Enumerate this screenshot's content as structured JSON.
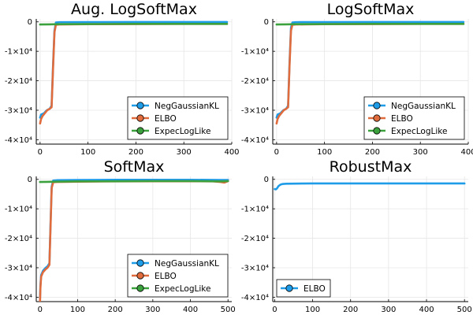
{
  "figure": {
    "background": "#ffffff"
  },
  "colors": {
    "NegGaussianKL": "#1f9ce8",
    "ELBO": "#e06b3c",
    "ExpecLogLike": "#3aa13d"
  },
  "chart_data": [
    {
      "type": "line",
      "title": "Aug. LogSoftMax",
      "xlim": [
        -8,
        400
      ],
      "ylim": [
        -41500,
        1000
      ],
      "xticks": [
        0,
        100,
        200,
        300,
        400
      ],
      "xtick_labels": [
        "0",
        "100",
        "200",
        "300",
        "400"
      ],
      "yticks": [
        0,
        -10000,
        -20000,
        -30000,
        -40000
      ],
      "ytick_labels": [
        "0",
        "-1×10⁴",
        "-2×10⁴",
        "-3×10⁴",
        "-4×10⁴"
      ],
      "grid": true,
      "legend": "bottom-right",
      "series": [
        {
          "name": "NegGaussianKL",
          "color": "#1f9ce8",
          "x": [
            0,
            2,
            8,
            14,
            20,
            24,
            27,
            30,
            33,
            40,
            100,
            200,
            300,
            390
          ],
          "y": [
            -32500,
            -31500,
            -31000,
            -30000,
            -29500,
            -28500,
            -15000,
            -3000,
            -200,
            -100,
            -80,
            -60,
            -60,
            -60
          ]
        },
        {
          "name": "ELBO",
          "color": "#e06b3c",
          "x": [
            0,
            2,
            5,
            10,
            15,
            20,
            24,
            27,
            30,
            33,
            40,
            60,
            100,
            200,
            300,
            390
          ],
          "y": [
            -34500,
            -33000,
            -32000,
            -31000,
            -30000,
            -29500,
            -29000,
            -16000,
            -3500,
            -1000,
            -900,
            -850,
            -800,
            -750,
            -700,
            -700
          ]
        },
        {
          "name": "ExpecLogLike",
          "color": "#3aa13d",
          "x": [
            0,
            20,
            40,
            100,
            200,
            300,
            390
          ],
          "y": [
            -900,
            -850,
            -800,
            -750,
            -700,
            -700,
            -700
          ]
        }
      ]
    },
    {
      "type": "line",
      "title": "LogSoftMax",
      "xlim": [
        -8,
        400
      ],
      "ylim": [
        -41500,
        1000
      ],
      "xticks": [
        0,
        100,
        200,
        300,
        400
      ],
      "xtick_labels": [
        "0",
        "100",
        "200",
        "300",
        "400"
      ],
      "yticks": [
        0,
        -10000,
        -20000,
        -30000,
        -40000
      ],
      "ytick_labels": [
        "0",
        "-1×10⁴",
        "-2×10⁴",
        "-3×10⁴",
        "-4×10⁴"
      ],
      "grid": true,
      "legend": "bottom-right",
      "series": [
        {
          "name": "NegGaussianKL",
          "color": "#1f9ce8",
          "x": [
            0,
            2,
            8,
            14,
            20,
            24,
            27,
            30,
            33,
            40,
            100,
            200,
            300,
            390
          ],
          "y": [
            -32500,
            -31500,
            -31000,
            -30000,
            -29500,
            -28500,
            -14000,
            -2000,
            -200,
            -100,
            -80,
            -60,
            -60,
            -60
          ]
        },
        {
          "name": "ELBO",
          "color": "#e06b3c",
          "x": [
            0,
            2,
            5,
            10,
            15,
            20,
            24,
            27,
            30,
            33,
            40,
            60,
            100,
            200,
            300,
            390
          ],
          "y": [
            -34500,
            -33000,
            -32000,
            -31000,
            -30000,
            -29500,
            -29000,
            -15000,
            -3000,
            -1000,
            -900,
            -850,
            -800,
            -750,
            -700,
            -700
          ]
        },
        {
          "name": "ExpecLogLike",
          "color": "#3aa13d",
          "x": [
            0,
            20,
            40,
            100,
            200,
            300,
            390
          ],
          "y": [
            -900,
            -850,
            -800,
            -750,
            -700,
            -700,
            -700
          ]
        }
      ]
    },
    {
      "type": "line",
      "title": "SoftMax",
      "xlim": [
        -10,
        510
      ],
      "ylim": [
        -41500,
        1000
      ],
      "xticks": [
        0,
        100,
        200,
        300,
        400,
        500
      ],
      "xtick_labels": [
        "0",
        "100",
        "200",
        "300",
        "400",
        "500"
      ],
      "yticks": [
        0,
        -10000,
        -20000,
        -30000,
        -40000
      ],
      "ytick_labels": [
        "0",
        "-1×10⁴",
        "-2×10⁴",
        "-3×10⁴",
        "-4×10⁴"
      ],
      "grid": true,
      "legend": "bottom-right",
      "series": [
        {
          "name": "NegGaussianKL",
          "color": "#1f9ce8",
          "x": [
            0,
            1,
            3,
            8,
            15,
            20,
            25,
            28,
            31,
            35,
            45,
            100,
            200,
            300,
            400,
            480,
            500
          ],
          "y": [
            -40500,
            -36000,
            -32500,
            -31000,
            -30000,
            -29500,
            -28500,
            -15000,
            -2500,
            -400,
            -300,
            -200,
            -150,
            -150,
            -150,
            -200,
            -200
          ]
        },
        {
          "name": "ELBO",
          "color": "#e06b3c",
          "x": [
            0,
            1,
            3,
            8,
            15,
            20,
            25,
            28,
            31,
            35,
            45,
            100,
            200,
            300,
            400,
            460,
            480,
            490,
            500
          ],
          "y": [
            -41500,
            -37000,
            -33000,
            -31500,
            -30500,
            -30000,
            -29000,
            -16000,
            -3000,
            -1000,
            -900,
            -800,
            -700,
            -650,
            -650,
            -700,
            -900,
            -1100,
            -600
          ]
        },
        {
          "name": "ExpecLogLike",
          "color": "#3aa13d",
          "x": [
            0,
            20,
            40,
            100,
            200,
            300,
            400,
            460,
            480,
            500
          ],
          "y": [
            -900,
            -850,
            -800,
            -700,
            -650,
            -600,
            -600,
            -650,
            -700,
            -600
          ]
        }
      ]
    },
    {
      "type": "line",
      "title": "RobustMax",
      "xlim": [
        -5,
        510
      ],
      "ylim": [
        -41500,
        1000
      ],
      "xticks": [
        0,
        100,
        200,
        300,
        400,
        500
      ],
      "xtick_labels": [
        "0",
        "100",
        "200",
        "300",
        "400",
        "500"
      ],
      "yticks": [
        0,
        -10000,
        -20000,
        -30000,
        -40000
      ],
      "ytick_labels": [
        "0",
        "-1×10⁴",
        "-2×10⁴",
        "-3×10⁴",
        "-4×10⁴"
      ],
      "grid": true,
      "legend": "bottom-left",
      "series": [
        {
          "name": "ELBO",
          "color": "#1f9ce8",
          "x": [
            0,
            3,
            6,
            10,
            15,
            20,
            30,
            50,
            100,
            200,
            300,
            400,
            500
          ],
          "y": [
            -3300,
            -3400,
            -3100,
            -2300,
            -1800,
            -1600,
            -1500,
            -1450,
            -1400,
            -1400,
            -1400,
            -1400,
            -1400
          ]
        }
      ]
    }
  ]
}
